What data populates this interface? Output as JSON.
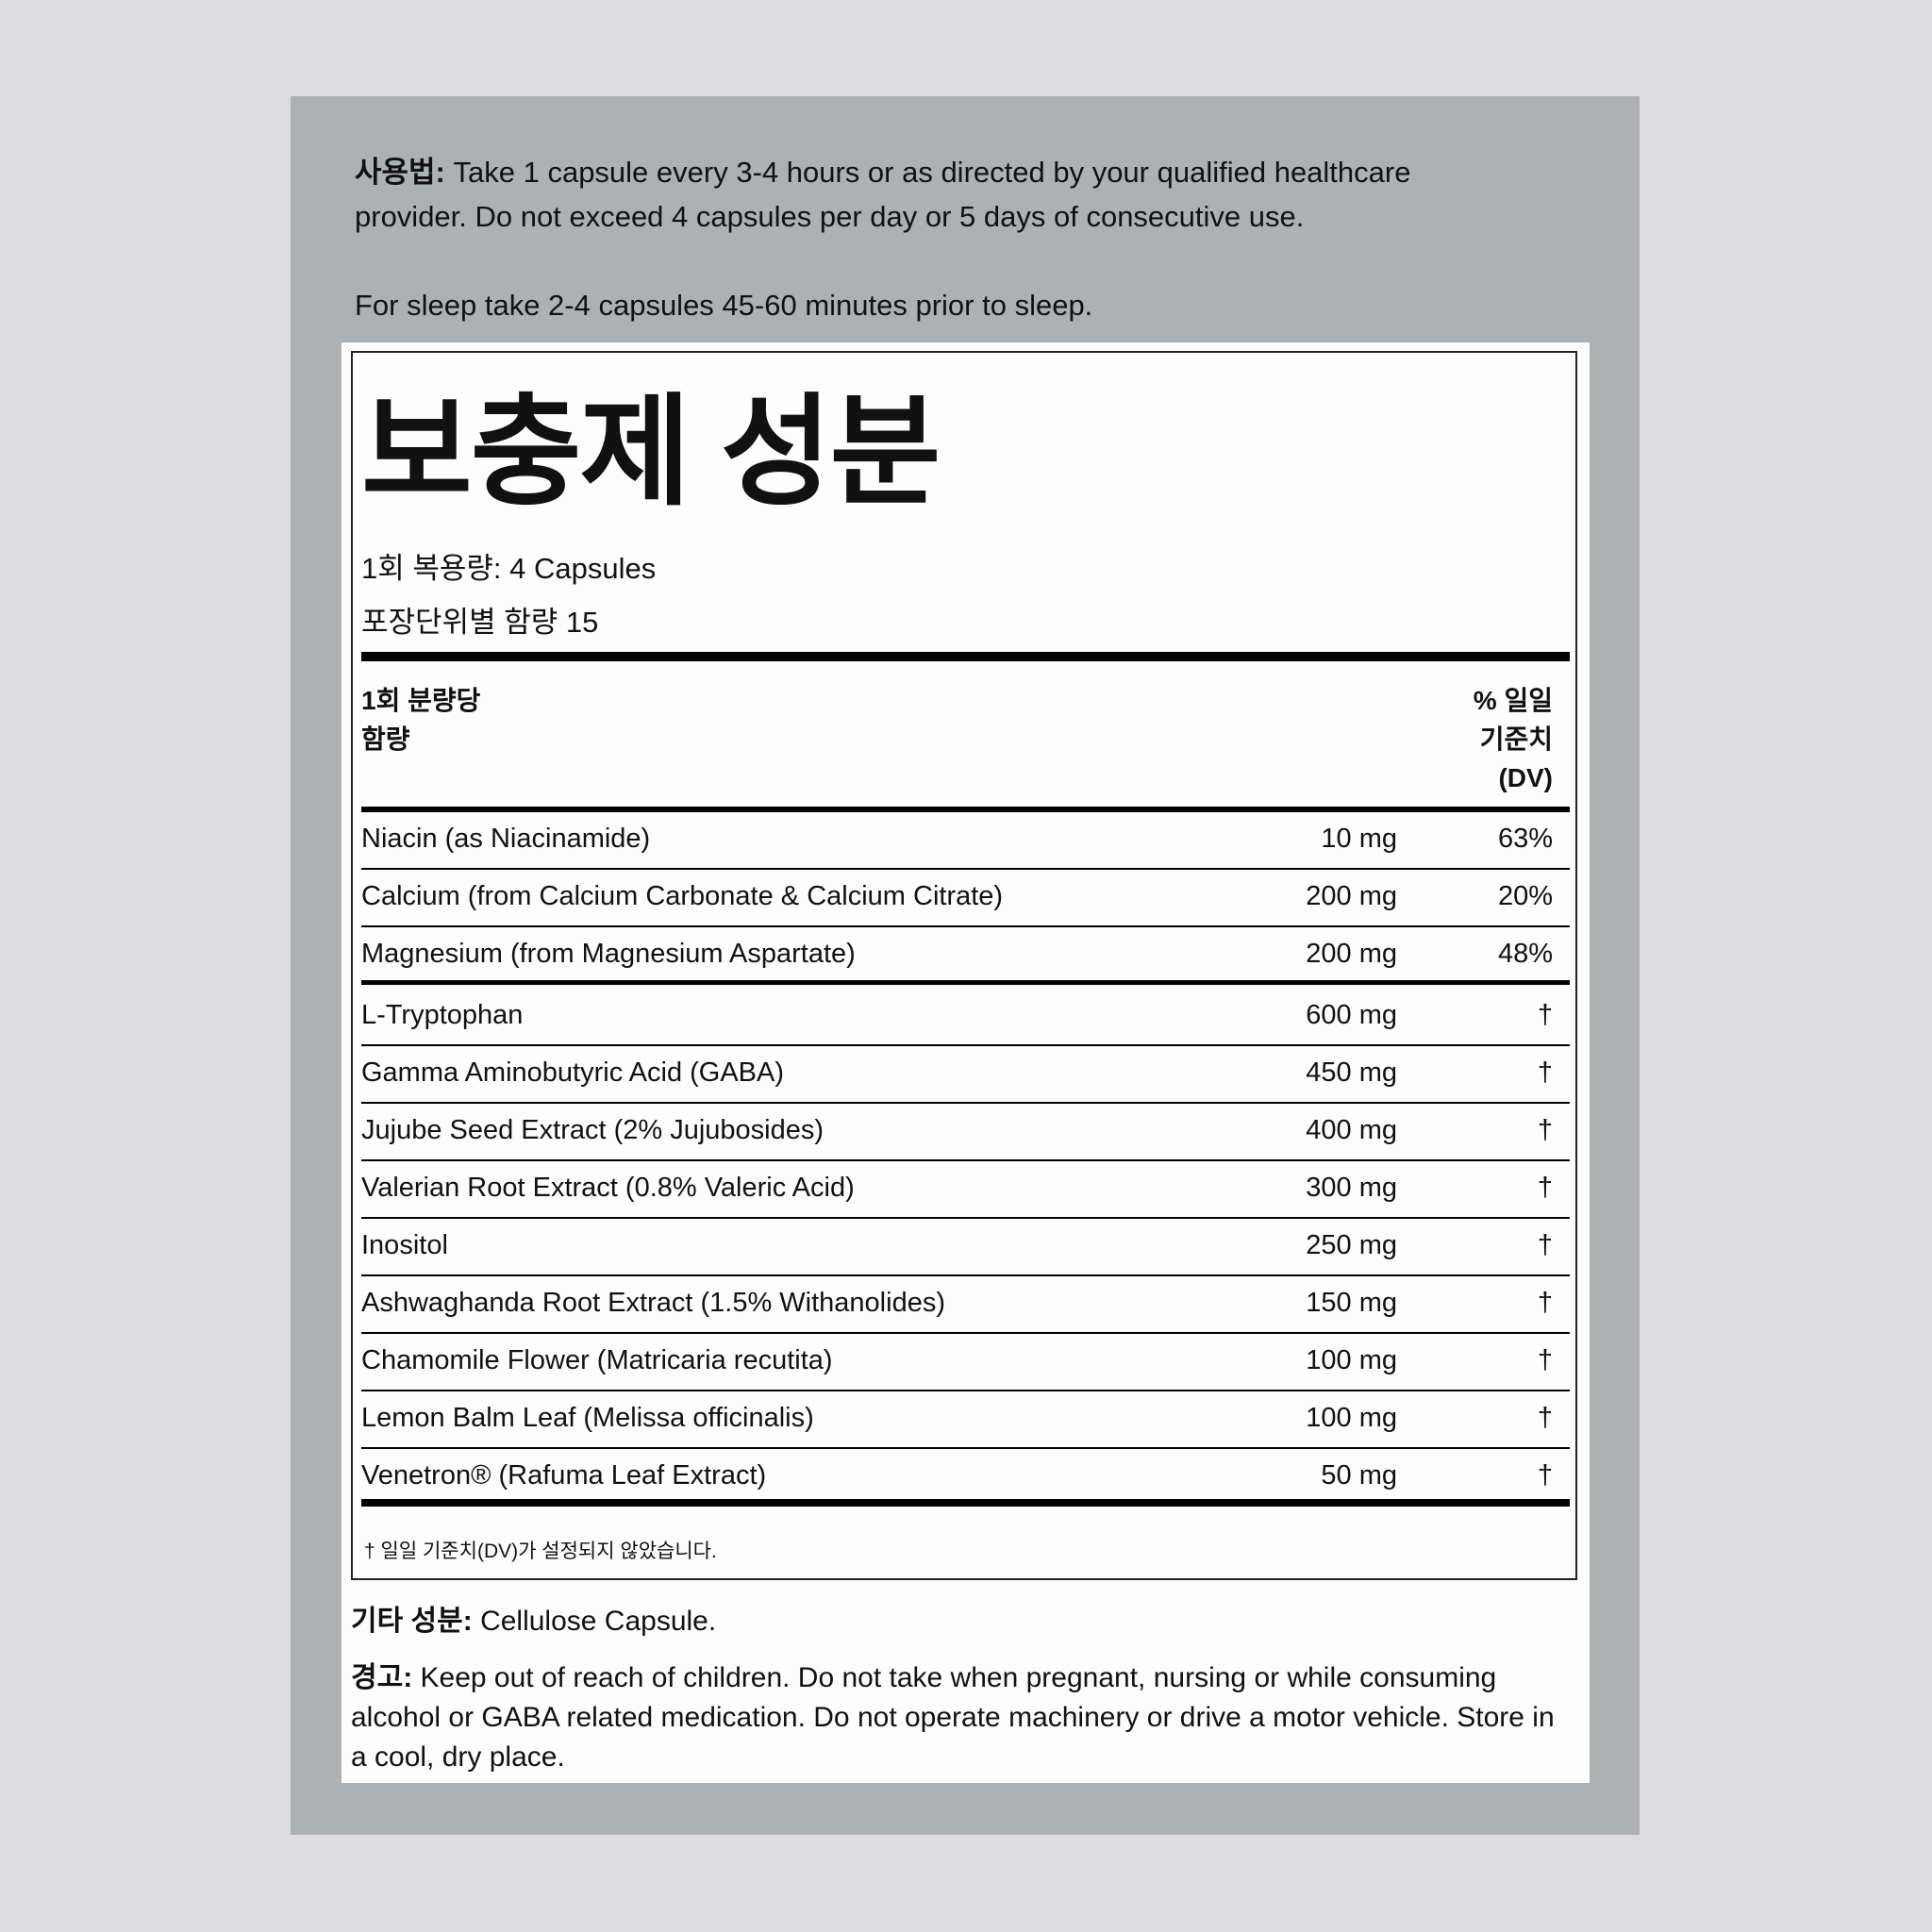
{
  "directions": {
    "label": "사용법:",
    "text_line1": " Take 1 capsule every 3-4 hours or as directed by your qualified healthcare",
    "text_line2": "provider. Do not exceed 4 capsules per day or 5 days of consecutive use.",
    "sleep": "For sleep take 2-4 capsules 45-60 minutes prior to sleep."
  },
  "facts": {
    "title": "보충제 성분",
    "serving_size": "1회 복용량: 4 Capsules",
    "servings_per_container": "포장단위별 함량 15",
    "header_left_1": "1회 분량당",
    "header_left_2": "함량",
    "header_right_1": "% 일일",
    "header_right_2": "기준치",
    "header_right_3": "(DV)",
    "vitamins": [
      {
        "name": "Niacin (as Niacinamide)",
        "amount": "10 mg",
        "dv": "63%"
      },
      {
        "name": "Calcium (from Calcium Carbonate & Calcium Citrate)",
        "amount": "200 mg",
        "dv": "20%"
      },
      {
        "name": "Magnesium (from Magnesium Aspartate)",
        "amount": "200 mg",
        "dv": "48%"
      }
    ],
    "others": [
      {
        "name": "L-Tryptophan",
        "amount": "600 mg",
        "dv": "†"
      },
      {
        "name": "Gamma Aminobutyric Acid (GABA)",
        "amount": "450 mg",
        "dv": "†"
      },
      {
        "name": "Jujube Seed Extract (2% Jujubosides)",
        "amount": "400 mg",
        "dv": "†"
      },
      {
        "name": "Valerian Root Extract (0.8% Valeric Acid)",
        "amount": "300 mg",
        "dv": "†"
      },
      {
        "name": "Inositol",
        "amount": "250 mg",
        "dv": "†"
      },
      {
        "name": "Ashwaghanda Root Extract (1.5% Withanolides)",
        "amount": "150 mg",
        "dv": "†"
      },
      {
        "name": "Chamomile Flower (Matricaria recutita)",
        "amount": "100 mg",
        "dv": "†"
      },
      {
        "name": "Lemon Balm Leaf (Melissa officinalis)",
        "amount": "100 mg",
        "dv": "†"
      },
      {
        "name": "Venetron® (Rafuma Leaf Extract)",
        "amount": "50 mg",
        "dv": "†"
      }
    ],
    "footnote": "† 일일 기준치(DV)가 설정되지 않았습니다."
  },
  "other_ingredients": {
    "label": "기타 성분:",
    "text": " Cellulose Capsule."
  },
  "warning": {
    "label": "경고:",
    "line1": " Keep out of reach of children. Do not take when pregnant, nursing or while consuming",
    "line2": "alcohol or GABA related medication. Do not operate machinery or drive a motor vehicle. Store in",
    "line3": "a cool, dry place."
  },
  "colors": {
    "background": "#dcdbde",
    "panel": "#adb1b4",
    "label": "#fdfdfd",
    "ink": "#111111"
  }
}
